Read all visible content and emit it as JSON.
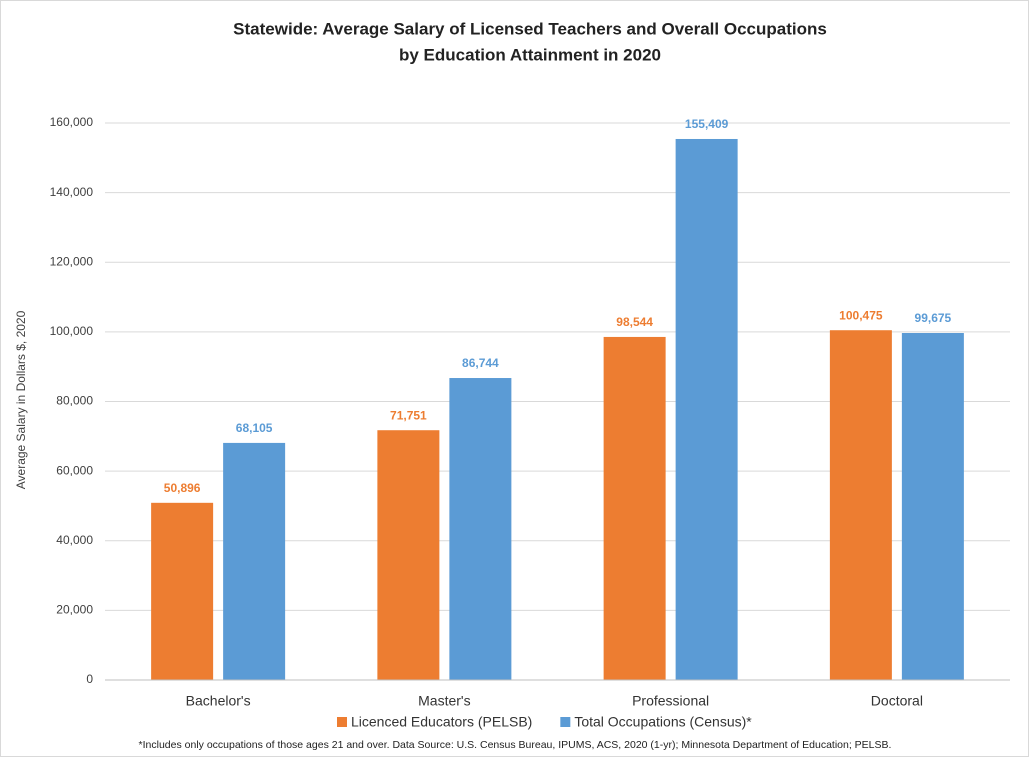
{
  "chart_data": {
    "type": "bar",
    "title": [
      "Statewide: Average Salary of Licensed Teachers and Overall Occupations",
      "by Education Attainment in 2020"
    ],
    "ylabel": "Average Salary in Dollars $, 2020",
    "footnote": "*Includes only occupations of those ages 21 and over. Data Source: U.S. Census Bureau, IPUMS, ACS, 2020 (1-yr); Minnesota Department of Education; PELSB.",
    "categories": [
      "Bachelor's",
      "Master's",
      "Professional",
      "Doctoral"
    ],
    "series": [
      {
        "name": "Licenced Educators (PELSB)",
        "color": "#ed7d31",
        "values": [
          50896,
          71751,
          98544,
          100475
        ],
        "value_labels": [
          "50,896",
          "71,751",
          "98,544",
          "100,475"
        ]
      },
      {
        "name": "Total Occupations (Census)*",
        "color": "#5b9bd5",
        "values": [
          68105,
          86744,
          155409,
          99675
        ],
        "value_labels": [
          "68,105",
          "86,744",
          "155,409",
          "99,675"
        ]
      }
    ],
    "ylim": [
      0,
      160000
    ],
    "yticks": [
      0,
      {
        "value": 20000,
        "label": "20,000"
      },
      {
        "value": 40000,
        "label": "40,000"
      },
      {
        "value": 60000,
        "label": "60,000"
      },
      {
        "value": 80000,
        "label": "80,000"
      },
      {
        "value": 100000,
        "label": "100,000"
      },
      {
        "value": 120000,
        "label": "120,000"
      },
      {
        "value": 140000,
        "label": "140,000"
      },
      {
        "value": 160000,
        "label": "160,000"
      }
    ],
    "grid": true,
    "legend": "bottom"
  }
}
